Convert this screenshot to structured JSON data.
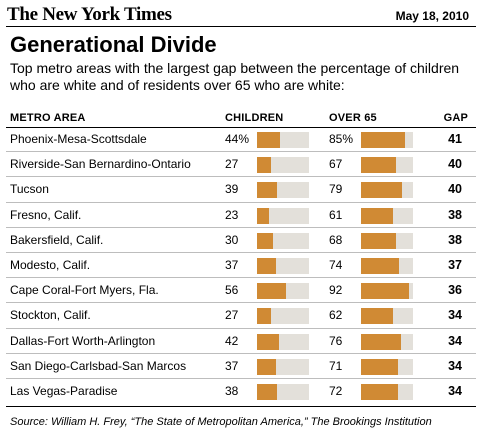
{
  "masthead": "The New York Times",
  "date": "May 18, 2010",
  "title": "Generational Divide",
  "subtitle": "Top metro areas with the largest gap between the percentage of children who are white and of residents over 65 who are white:",
  "columns": {
    "metro": "METRO AREA",
    "children": "CHILDREN",
    "over65": "OVER 65",
    "gap": "GAP"
  },
  "chart_data": {
    "type": "table",
    "title": "Generational Divide",
    "percent_suffix_first_row": "%",
    "bar_scale_max": 100,
    "colors": {
      "bar": "#d08a34",
      "track": "#e3e0da"
    },
    "rows": [
      {
        "metro": "Phoenix-Mesa-Scottsdale",
        "children": 44,
        "over65": 85,
        "gap": 41,
        "children_label": "44%",
        "over65_label": "85%"
      },
      {
        "metro": "Riverside-San Bernardino-Ontario",
        "children": 27,
        "over65": 67,
        "gap": 40,
        "children_label": "27",
        "over65_label": "67"
      },
      {
        "metro": "Tucson",
        "children": 39,
        "over65": 79,
        "gap": 40,
        "children_label": "39",
        "over65_label": "79"
      },
      {
        "metro": "Fresno, Calif.",
        "children": 23,
        "over65": 61,
        "gap": 38,
        "children_label": "23",
        "over65_label": "61"
      },
      {
        "metro": "Bakersfield, Calif.",
        "children": 30,
        "over65": 68,
        "gap": 38,
        "children_label": "30",
        "over65_label": "68"
      },
      {
        "metro": "Modesto, Calif.",
        "children": 37,
        "over65": 74,
        "gap": 37,
        "children_label": "37",
        "over65_label": "74"
      },
      {
        "metro": "Cape Coral-Fort Myers, Fla.",
        "children": 56,
        "over65": 92,
        "gap": 36,
        "children_label": "56",
        "over65_label": "92"
      },
      {
        "metro": "Stockton, Calif.",
        "children": 27,
        "over65": 62,
        "gap": 34,
        "children_label": "27",
        "over65_label": "62"
      },
      {
        "metro": "Dallas-Fort Worth-Arlington",
        "children": 42,
        "over65": 76,
        "gap": 34,
        "children_label": "42",
        "over65_label": "76"
      },
      {
        "metro": "San Diego-Carlsbad-San Marcos",
        "children": 37,
        "over65": 71,
        "gap": 34,
        "children_label": "37",
        "over65_label": "71"
      },
      {
        "metro": "Las Vegas-Paradise",
        "children": 38,
        "over65": 72,
        "gap": 34,
        "children_label": "38",
        "over65_label": "72"
      }
    ]
  },
  "source": "Source: William H. Frey, “The State of Metropolitan America,” The Brookings Institution"
}
